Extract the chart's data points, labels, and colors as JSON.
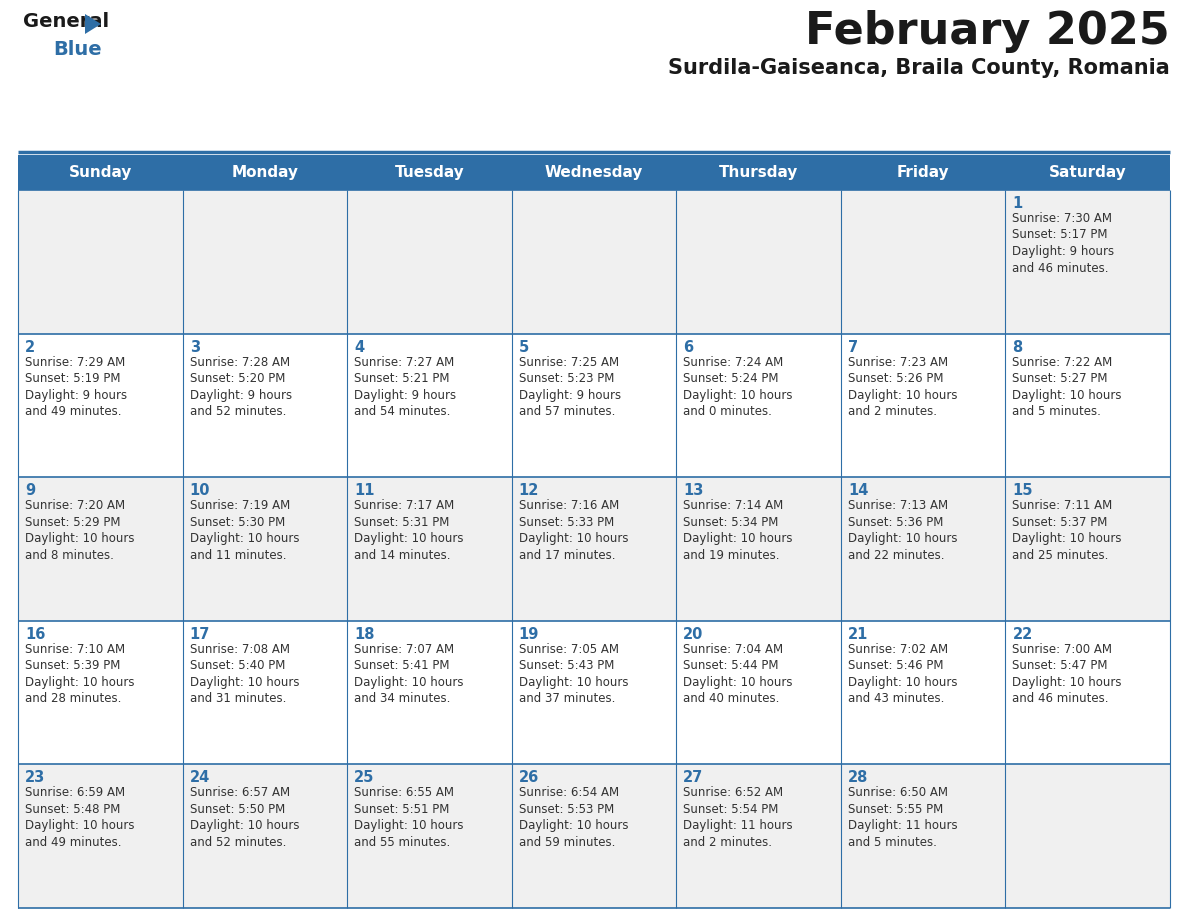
{
  "title": "February 2025",
  "subtitle": "Surdila-Gaiseanca, Braila County, Romania",
  "days_of_week": [
    "Sunday",
    "Monday",
    "Tuesday",
    "Wednesday",
    "Thursday",
    "Friday",
    "Saturday"
  ],
  "header_bg": "#2E6EA6",
  "header_text": "#FFFFFF",
  "cell_bg_odd": "#F0F0F0",
  "cell_bg_even": "#FFFFFF",
  "border_color": "#2E6EA6",
  "title_color": "#1a1a1a",
  "subtitle_color": "#1a1a1a",
  "day_number_color": "#2E6EA6",
  "cell_text_color": "#333333",
  "weeks": [
    [
      {
        "day": null,
        "info": null
      },
      {
        "day": null,
        "info": null
      },
      {
        "day": null,
        "info": null
      },
      {
        "day": null,
        "info": null
      },
      {
        "day": null,
        "info": null
      },
      {
        "day": null,
        "info": null
      },
      {
        "day": 1,
        "info": "Sunrise: 7:30 AM\nSunset: 5:17 PM\nDaylight: 9 hours\nand 46 minutes."
      }
    ],
    [
      {
        "day": 2,
        "info": "Sunrise: 7:29 AM\nSunset: 5:19 PM\nDaylight: 9 hours\nand 49 minutes."
      },
      {
        "day": 3,
        "info": "Sunrise: 7:28 AM\nSunset: 5:20 PM\nDaylight: 9 hours\nand 52 minutes."
      },
      {
        "day": 4,
        "info": "Sunrise: 7:27 AM\nSunset: 5:21 PM\nDaylight: 9 hours\nand 54 minutes."
      },
      {
        "day": 5,
        "info": "Sunrise: 7:25 AM\nSunset: 5:23 PM\nDaylight: 9 hours\nand 57 minutes."
      },
      {
        "day": 6,
        "info": "Sunrise: 7:24 AM\nSunset: 5:24 PM\nDaylight: 10 hours\nand 0 minutes."
      },
      {
        "day": 7,
        "info": "Sunrise: 7:23 AM\nSunset: 5:26 PM\nDaylight: 10 hours\nand 2 minutes."
      },
      {
        "day": 8,
        "info": "Sunrise: 7:22 AM\nSunset: 5:27 PM\nDaylight: 10 hours\nand 5 minutes."
      }
    ],
    [
      {
        "day": 9,
        "info": "Sunrise: 7:20 AM\nSunset: 5:29 PM\nDaylight: 10 hours\nand 8 minutes."
      },
      {
        "day": 10,
        "info": "Sunrise: 7:19 AM\nSunset: 5:30 PM\nDaylight: 10 hours\nand 11 minutes."
      },
      {
        "day": 11,
        "info": "Sunrise: 7:17 AM\nSunset: 5:31 PM\nDaylight: 10 hours\nand 14 minutes."
      },
      {
        "day": 12,
        "info": "Sunrise: 7:16 AM\nSunset: 5:33 PM\nDaylight: 10 hours\nand 17 minutes."
      },
      {
        "day": 13,
        "info": "Sunrise: 7:14 AM\nSunset: 5:34 PM\nDaylight: 10 hours\nand 19 minutes."
      },
      {
        "day": 14,
        "info": "Sunrise: 7:13 AM\nSunset: 5:36 PM\nDaylight: 10 hours\nand 22 minutes."
      },
      {
        "day": 15,
        "info": "Sunrise: 7:11 AM\nSunset: 5:37 PM\nDaylight: 10 hours\nand 25 minutes."
      }
    ],
    [
      {
        "day": 16,
        "info": "Sunrise: 7:10 AM\nSunset: 5:39 PM\nDaylight: 10 hours\nand 28 minutes."
      },
      {
        "day": 17,
        "info": "Sunrise: 7:08 AM\nSunset: 5:40 PM\nDaylight: 10 hours\nand 31 minutes."
      },
      {
        "day": 18,
        "info": "Sunrise: 7:07 AM\nSunset: 5:41 PM\nDaylight: 10 hours\nand 34 minutes."
      },
      {
        "day": 19,
        "info": "Sunrise: 7:05 AM\nSunset: 5:43 PM\nDaylight: 10 hours\nand 37 minutes."
      },
      {
        "day": 20,
        "info": "Sunrise: 7:04 AM\nSunset: 5:44 PM\nDaylight: 10 hours\nand 40 minutes."
      },
      {
        "day": 21,
        "info": "Sunrise: 7:02 AM\nSunset: 5:46 PM\nDaylight: 10 hours\nand 43 minutes."
      },
      {
        "day": 22,
        "info": "Sunrise: 7:00 AM\nSunset: 5:47 PM\nDaylight: 10 hours\nand 46 minutes."
      }
    ],
    [
      {
        "day": 23,
        "info": "Sunrise: 6:59 AM\nSunset: 5:48 PM\nDaylight: 10 hours\nand 49 minutes."
      },
      {
        "day": 24,
        "info": "Sunrise: 6:57 AM\nSunset: 5:50 PM\nDaylight: 10 hours\nand 52 minutes."
      },
      {
        "day": 25,
        "info": "Sunrise: 6:55 AM\nSunset: 5:51 PM\nDaylight: 10 hours\nand 55 minutes."
      },
      {
        "day": 26,
        "info": "Sunrise: 6:54 AM\nSunset: 5:53 PM\nDaylight: 10 hours\nand 59 minutes."
      },
      {
        "day": 27,
        "info": "Sunrise: 6:52 AM\nSunset: 5:54 PM\nDaylight: 11 hours\nand 2 minutes."
      },
      {
        "day": 28,
        "info": "Sunrise: 6:50 AM\nSunset: 5:55 PM\nDaylight: 11 hours\nand 5 minutes."
      },
      {
        "day": null,
        "info": null
      }
    ]
  ]
}
